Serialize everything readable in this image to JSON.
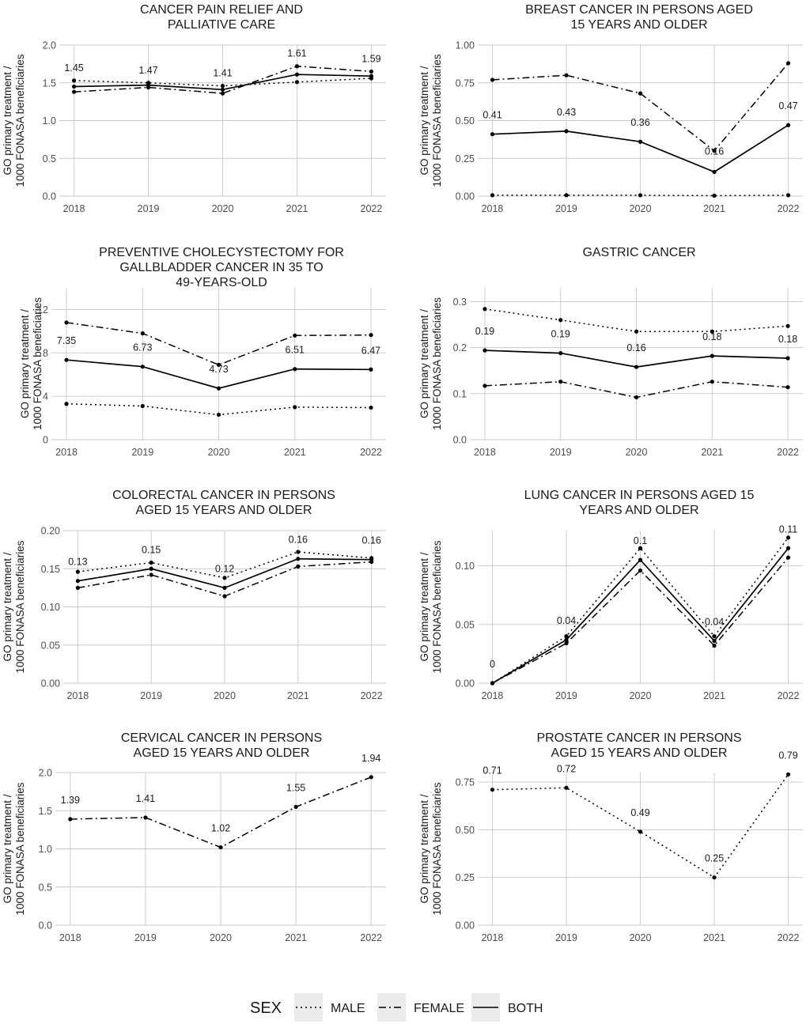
{
  "legend": {
    "title": "SEX",
    "items": [
      {
        "label": "MALE",
        "dash": "dotted"
      },
      {
        "label": "FEMALE",
        "dash": "dashdot"
      },
      {
        "label": "BOTH",
        "dash": "solid"
      }
    ]
  },
  "chart_data": [
    {
      "type": "line",
      "title": [
        "CANCER PAIN RELIEF AND",
        "PALLIATIVE CARE"
      ],
      "ylabel": [
        "GO primary treatment /",
        "1000 FONASA beneficiaries"
      ],
      "x": [
        "2018",
        "2019",
        "2020",
        "2021",
        "2022"
      ],
      "ylim": [
        0,
        2.0
      ],
      "yticks": [
        "0.0",
        "0.5",
        "1.0",
        "1.5",
        "2.0"
      ],
      "grid": true,
      "series": [
        {
          "name": "MALE",
          "values": [
            1.53,
            1.5,
            1.46,
            1.51,
            1.56
          ]
        },
        {
          "name": "FEMALE",
          "values": [
            1.38,
            1.44,
            1.36,
            1.72,
            1.65
          ]
        },
        {
          "name": "BOTH",
          "values": [
            1.45,
            1.47,
            1.41,
            1.61,
            1.59
          ]
        }
      ],
      "data_labels": [
        "1.45",
        "1.47",
        "1.41",
        "1.61",
        "1.59"
      ]
    },
    {
      "type": "line",
      "title": [
        "BREAST CANCER IN PERSONS AGED",
        "15 YEARS AND OLDER"
      ],
      "ylabel": [
        "GO primary treatment /",
        "1000 FONASA beneficiaries"
      ],
      "x": [
        "2018",
        "2019",
        "2020",
        "2021",
        "2022"
      ],
      "ylim": [
        0,
        1.0
      ],
      "yticks": [
        "0.00",
        "0.25",
        "0.50",
        "0.75",
        "1.00"
      ],
      "grid": true,
      "series": [
        {
          "name": "MALE",
          "values": [
            0.006,
            0.006,
            0.006,
            0.003,
            0.006
          ]
        },
        {
          "name": "FEMALE",
          "values": [
            0.77,
            0.8,
            0.68,
            0.3,
            0.88
          ]
        },
        {
          "name": "BOTH",
          "values": [
            0.41,
            0.43,
            0.36,
            0.16,
            0.47
          ]
        }
      ],
      "data_labels": [
        "0.41",
        "0.43",
        "0.36",
        "0.16",
        "0.47"
      ]
    },
    {
      "type": "line",
      "title": [
        "PREVENTIVE CHOLECYSTECTOMY FOR",
        "GALLBLADDER CANCER IN 35 TO",
        "49-YEARS-OLD"
      ],
      "ylabel": [
        "GO primary treatment /",
        "1000 FONASA beneficiaries"
      ],
      "x": [
        "2018",
        "2019",
        "2020",
        "2021",
        "2022"
      ],
      "ylim": [
        0,
        14.0
      ],
      "yticks": [
        "0",
        "4",
        "8",
        "12"
      ],
      "ytickvals": [
        0,
        4,
        8,
        12
      ],
      "grid": true,
      "series": [
        {
          "name": "MALE",
          "values": [
            3.3,
            3.1,
            2.3,
            3.0,
            2.95
          ]
        },
        {
          "name": "FEMALE",
          "values": [
            10.8,
            9.8,
            6.9,
            9.6,
            9.65
          ]
        },
        {
          "name": "BOTH",
          "values": [
            7.35,
            6.73,
            4.73,
            6.51,
            6.47
          ]
        }
      ],
      "data_labels": [
        "7.35",
        "6.73",
        "4.73",
        "6.51",
        "6.47"
      ]
    },
    {
      "type": "line",
      "title": [
        "GASTRIC CANCER"
      ],
      "ylabel": [
        "GO primary treatment /",
        "1000 FONASA beneficiaries"
      ],
      "x": [
        "2018",
        "2019",
        "2020",
        "2021",
        "2022"
      ],
      "ylim": [
        0,
        0.33
      ],
      "yticks": [
        "0.0",
        "0.1",
        "0.2",
        "0.3"
      ],
      "ytickvals": [
        0,
        0.1,
        0.2,
        0.3
      ],
      "grid": true,
      "series": [
        {
          "name": "MALE",
          "values": [
            0.284,
            0.26,
            0.235,
            0.235,
            0.247
          ]
        },
        {
          "name": "FEMALE",
          "values": [
            0.117,
            0.126,
            0.092,
            0.126,
            0.114
          ]
        },
        {
          "name": "BOTH",
          "values": [
            0.194,
            0.188,
            0.158,
            0.182,
            0.177
          ]
        }
      ],
      "data_labels": [
        "0.19",
        "0.19",
        "0.16",
        "0.18",
        "0.18"
      ]
    },
    {
      "type": "line",
      "title": [
        "COLORECTAL CANCER IN PERSONS",
        "AGED 15 YEARS AND OLDER"
      ],
      "ylabel": [
        "GO primary treatment /",
        "1000 FONASA beneficiaries"
      ],
      "x": [
        "2018",
        "2019",
        "2020",
        "2021",
        "2022"
      ],
      "ylim": [
        0,
        0.2
      ],
      "yticks": [
        "0.00",
        "0.05",
        "0.10",
        "0.15",
        "0.20"
      ],
      "grid": true,
      "series": [
        {
          "name": "MALE",
          "values": [
            0.146,
            0.158,
            0.138,
            0.172,
            0.164
          ]
        },
        {
          "name": "FEMALE",
          "values": [
            0.125,
            0.142,
            0.114,
            0.153,
            0.159
          ]
        },
        {
          "name": "BOTH",
          "values": [
            0.134,
            0.15,
            0.125,
            0.163,
            0.162
          ]
        }
      ],
      "data_labels": [
        "0.13",
        "0.15",
        "0.12",
        "0.16",
        "0.16"
      ]
    },
    {
      "type": "line",
      "title": [
        "LUNG CANCER IN PERSONS AGED 15",
        "YEARS AND OLDER"
      ],
      "ylabel": [
        "GO primary treatment /",
        "1000 FONASA beneficiaries"
      ],
      "x": [
        "2018",
        "2019",
        "2020",
        "2021",
        "2022"
      ],
      "ylim": [
        0,
        0.13
      ],
      "yticks": [
        "0.00",
        "0.05",
        "0.10"
      ],
      "ytickvals": [
        0,
        0.05,
        0.1
      ],
      "grid": true,
      "series": [
        {
          "name": "MALE",
          "values": [
            0.0,
            0.04,
            0.115,
            0.04,
            0.124
          ]
        },
        {
          "name": "FEMALE",
          "values": [
            0.0,
            0.034,
            0.096,
            0.032,
            0.107
          ]
        },
        {
          "name": "BOTH",
          "values": [
            0.0,
            0.037,
            0.105,
            0.036,
            0.115
          ]
        }
      ],
      "data_labels": [
        "0",
        "0.04",
        "0.1",
        "0.04",
        "0.11"
      ]
    },
    {
      "type": "line",
      "title": [
        "CERVICAL CANCER IN PERSONS",
        "AGED 15 YEARS AND OLDER"
      ],
      "ylabel": [
        "GO primary treatment /",
        "1000 FONASA beneficiaries"
      ],
      "x": [
        "2018",
        "2019",
        "2020",
        "2021",
        "2022"
      ],
      "ylim": [
        0,
        2.0
      ],
      "yticks": [
        "0.0",
        "0.5",
        "1.0",
        "1.5",
        "2.0"
      ],
      "grid": true,
      "series": [
        {
          "name": "FEMALE",
          "values": [
            1.39,
            1.41,
            1.02,
            1.55,
            1.94
          ]
        }
      ],
      "data_labels": [
        "1.39",
        "1.41",
        "1.02",
        "1.55",
        "1.94"
      ]
    },
    {
      "type": "line",
      "title": [
        "PROSTATE CANCER IN PERSONS",
        "AGED 15 YEARS AND OLDER"
      ],
      "ylabel": [
        "GO primary treatment /",
        "1000 FONASA beneficiaries"
      ],
      "x": [
        "2018",
        "2019",
        "2020",
        "2021",
        "2022"
      ],
      "ylim": [
        0,
        0.8
      ],
      "yticks": [
        "0.00",
        "0.25",
        "0.50",
        "0.75"
      ],
      "ytickvals": [
        0,
        0.25,
        0.5,
        0.75
      ],
      "grid": true,
      "series": [
        {
          "name": "MALE",
          "values": [
            0.71,
            0.72,
            0.49,
            0.25,
            0.79
          ]
        }
      ],
      "data_labels": [
        "0.71",
        "0.72",
        "0.49",
        "0.25",
        "0.79"
      ]
    }
  ]
}
